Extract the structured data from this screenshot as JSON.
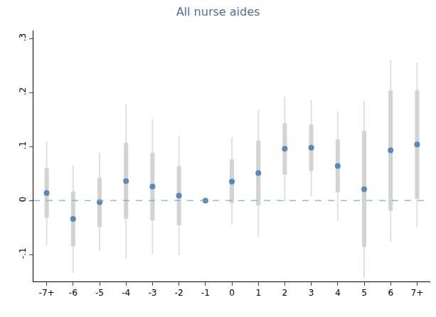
{
  "chart_data": {
    "type": "scatter",
    "title": "All nurse aides",
    "categories": [
      "-7+",
      "-6",
      "-5",
      "-4",
      "-3",
      "-2",
      "-1",
      "0",
      "1",
      "2",
      "3",
      "4",
      "5",
      "6",
      "7+"
    ],
    "values": [
      0.014,
      -0.034,
      -0.003,
      0.036,
      0.026,
      0.009,
      0,
      0.035,
      0.051,
      0.096,
      0.098,
      0.064,
      0.021,
      0.093,
      0.104
    ],
    "color": "#5b89b3",
    "marker": "circle",
    "error_bars": {
      "inner": {
        "lower": [
          -0.032,
          -0.085,
          -0.049,
          -0.034,
          -0.037,
          -0.046,
          null,
          -0.005,
          -0.009,
          0.048,
          0.055,
          0.015,
          -0.086,
          -0.019,
          0.003
        ],
        "upper": [
          0.06,
          0.017,
          0.042,
          0.107,
          0.088,
          0.064,
          null,
          0.076,
          0.111,
          0.143,
          0.141,
          0.113,
          0.129,
          0.204,
          0.204
        ],
        "color": "#d3d3d3"
      },
      "outer": {
        "lower": [
          -0.084,
          -0.134,
          -0.093,
          -0.107,
          -0.099,
          -0.101,
          null,
          -0.045,
          -0.067,
          -0.002,
          0.008,
          -0.038,
          -0.143,
          -0.076,
          -0.05
        ],
        "upper": [
          0.11,
          0.066,
          0.088,
          0.178,
          0.151,
          0.12,
          null,
          0.117,
          0.168,
          0.193,
          0.187,
          0.165,
          0.185,
          0.261,
          0.256
        ],
        "color": "#e0e0e0"
      }
    },
    "reference_line": {
      "value": 0,
      "line_style": "dash",
      "color": "#7fb0b5"
    },
    "ylim": [
      -0.15,
      0.315
    ],
    "yticks": [
      {
        "value": -0.1,
        "label": "-.1"
      },
      0,
      {
        "value": 0.1,
        "label": ".1"
      },
      {
        "value": 0.2,
        "label": ".2"
      },
      {
        "value": 0.3,
        "label": ".3"
      }
    ],
    "grid": false
  }
}
